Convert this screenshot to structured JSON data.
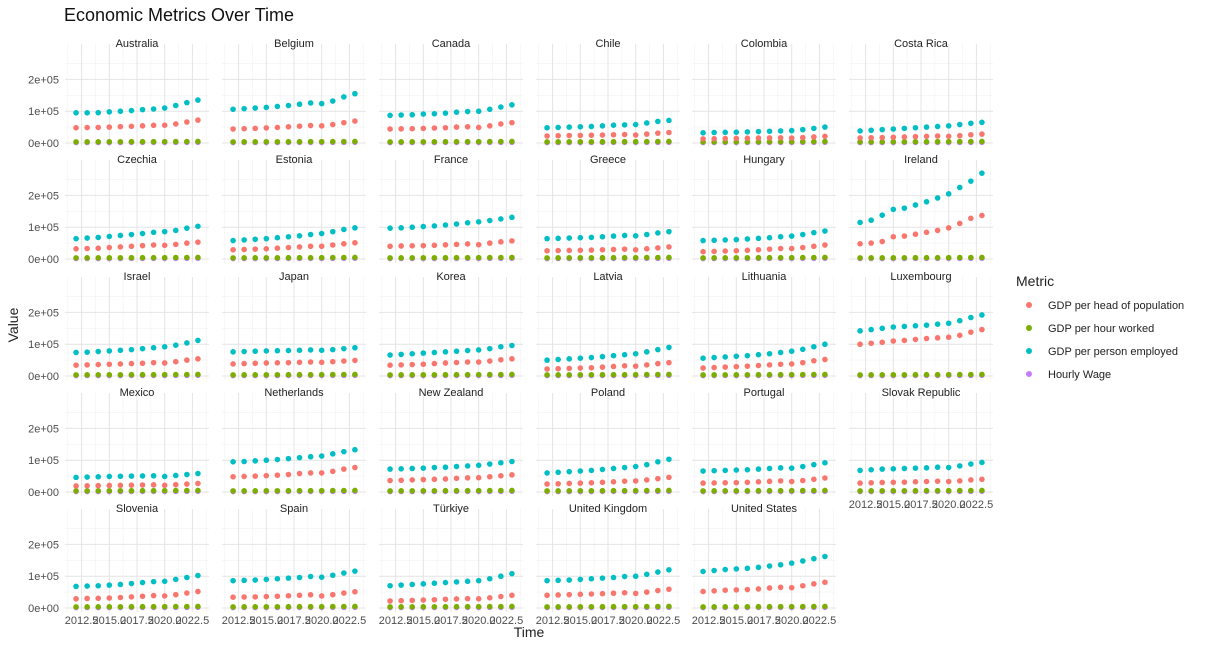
{
  "chart_data": {
    "type": "scatter",
    "title": "Economic Metrics Over Time",
    "xlabel": "Time",
    "ylabel": "Value",
    "facet_layout": {
      "columns": 6,
      "rows": 5,
      "shared_axes": true
    },
    "xlim": [
      2011,
      2024
    ],
    "ylim": [
      0,
      280000
    ],
    "x_ticks": [
      2012.5,
      2015.0,
      2017.5,
      2020.0,
      2022.5
    ],
    "x_tick_labels": [
      "2012.5",
      "2015.0",
      "2017.5",
      "2020.0",
      "2022.5"
    ],
    "y_ticks": [
      0,
      100000,
      200000
    ],
    "y_tick_labels": [
      "0e+00",
      "1e+05",
      "2e+05"
    ],
    "x": [
      2012,
      2013,
      2014,
      2015,
      2016,
      2017,
      2018,
      2019,
      2020,
      2021,
      2022,
      2023
    ],
    "grid": true,
    "legend": {
      "title": "Metric",
      "placement": "right",
      "entries": [
        {
          "name": "GDP per head of population",
          "color": "#F8766D"
        },
        {
          "name": "GDP per hour worked",
          "color": "#7CAE00"
        },
        {
          "name": "GDP per person employed",
          "color": "#00BFC4"
        },
        {
          "name": "Hourly Wage",
          "color": "#C77CFF"
        }
      ]
    },
    "facets": [
      {
        "name": "Australia",
        "head": [
          48000,
          48500,
          49000,
          50000,
          51500,
          52500,
          54000,
          55500,
          56000,
          60000,
          66000,
          72000
        ],
        "per_employed": [
          95000,
          95000,
          95500,
          98000,
          100000,
          102000,
          105000,
          107000,
          110000,
          118000,
          127000,
          135000
        ]
      },
      {
        "name": "Belgium",
        "head": [
          44000,
          45000,
          46000,
          47500,
          49000,
          51000,
          53000,
          55000,
          54000,
          58000,
          64000,
          69000
        ],
        "per_employed": [
          106000,
          108000,
          110000,
          112000,
          115000,
          118000,
          122000,
          126000,
          124000,
          132000,
          145000,
          155000
        ]
      },
      {
        "name": "Canada",
        "head": [
          44000,
          44500,
          45000,
          46000,
          47000,
          48000,
          50000,
          51000,
          49000,
          54000,
          60000,
          64000
        ],
        "per_employed": [
          87000,
          88000,
          89000,
          91000,
          92000,
          94000,
          97000,
          99000,
          100000,
          106000,
          113000,
          120000
        ]
      },
      {
        "name": "Chile",
        "head": [
          22000,
          23000,
          23500,
          24000,
          24500,
          25000,
          26000,
          26500,
          25000,
          28000,
          31000,
          33000
        ],
        "per_employed": [
          48000,
          49000,
          50000,
          51000,
          52000,
          54000,
          56000,
          57000,
          58000,
          63000,
          68000,
          71000
        ]
      },
      {
        "name": "Colombia",
        "head": [
          13000,
          13500,
          14000,
          14500,
          15000,
          15500,
          16000,
          16500,
          15500,
          17000,
          19000,
          21000
        ],
        "per_employed": [
          32000,
          33000,
          33500,
          34000,
          35000,
          36000,
          37000,
          38000,
          39000,
          42000,
          46000,
          50000
        ]
      },
      {
        "name": "Costa Rica",
        "head": [
          16000,
          16500,
          17000,
          18000,
          19000,
          20000,
          21000,
          22000,
          21000,
          23000,
          26000,
          28000
        ],
        "per_employed": [
          38000,
          40000,
          42000,
          44000,
          46000,
          48000,
          50000,
          52000,
          54000,
          58000,
          62000,
          65000
        ]
      },
      {
        "name": "Czechia",
        "head": [
          32000,
          33000,
          34000,
          36000,
          38000,
          40000,
          42000,
          44000,
          43000,
          46000,
          50000,
          53000
        ],
        "per_employed": [
          64000,
          66000,
          68000,
          71000,
          74000,
          77000,
          80000,
          84000,
          86000,
          90000,
          97000,
          103000
        ]
      },
      {
        "name": "Estonia",
        "head": [
          29000,
          30000,
          31000,
          32000,
          34000,
          36000,
          38000,
          40000,
          40000,
          44000,
          48000,
          51000
        ],
        "per_employed": [
          58000,
          60000,
          62000,
          64000,
          67000,
          70000,
          73000,
          77000,
          80000,
          86000,
          93000,
          98000
        ]
      },
      {
        "name": "France",
        "head": [
          40000,
          41000,
          41500,
          42000,
          43000,
          44500,
          46000,
          47500,
          45000,
          50000,
          54000,
          57000
        ],
        "per_employed": [
          97000,
          98000,
          100000,
          102000,
          104000,
          107000,
          110000,
          114000,
          117000,
          121000,
          126000,
          131000
        ]
      },
      {
        "name": "Greece",
        "head": [
          26000,
          26500,
          27000,
          27500,
          28000,
          29000,
          30000,
          31000,
          29000,
          32000,
          35000,
          38000
        ],
        "per_employed": [
          64000,
          65000,
          66000,
          67000,
          68000,
          70000,
          72000,
          74000,
          73000,
          77000,
          82000,
          86000
        ]
      },
      {
        "name": "Hungary",
        "head": [
          23000,
          24000,
          25000,
          26000,
          27500,
          29000,
          31000,
          33000,
          33000,
          36000,
          40000,
          44000
        ],
        "per_employed": [
          58000,
          59000,
          60000,
          61000,
          63000,
          65000,
          67000,
          70000,
          72000,
          77000,
          83000,
          88000
        ]
      },
      {
        "name": "Ireland",
        "head": [
          48000,
          50000,
          55000,
          70000,
          72000,
          78000,
          84000,
          90000,
          98000,
          112000,
          128000,
          137000
        ],
        "per_employed": [
          115000,
          122000,
          138000,
          156000,
          160000,
          170000,
          180000,
          192000,
          205000,
          225000,
          245000,
          270000
        ]
      },
      {
        "name": "Israel",
        "head": [
          34000,
          35000,
          36000,
          37000,
          38000,
          39000,
          40000,
          42000,
          41000,
          45000,
          50000,
          54000
        ],
        "per_employed": [
          74000,
          75000,
          77000,
          79000,
          81000,
          83000,
          86000,
          89000,
          92000,
          97000,
          104000,
          112000
        ]
      },
      {
        "name": "Japan",
        "head": [
          38000,
          39000,
          40000,
          41000,
          41500,
          42000,
          43000,
          44000,
          43000,
          45000,
          47000,
          49000
        ],
        "per_employed": [
          76000,
          77000,
          78000,
          79000,
          79500,
          80000,
          81000,
          82000,
          81000,
          83000,
          86000,
          89000
        ]
      },
      {
        "name": "Korea",
        "head": [
          34000,
          35000,
          36000,
          37000,
          39000,
          41000,
          42500,
          44000,
          44000,
          47000,
          51000,
          54000
        ],
        "per_employed": [
          66000,
          68000,
          70000,
          72000,
          74000,
          76000,
          78000,
          80000,
          82000,
          86000,
          92000,
          96000
        ]
      },
      {
        "name": "Latvia",
        "head": [
          22000,
          23000,
          24000,
          25000,
          26000,
          28000,
          30000,
          32000,
          31000,
          35000,
          39000,
          42000
        ],
        "per_employed": [
          50000,
          52000,
          54000,
          56000,
          58000,
          61000,
          64000,
          67000,
          70000,
          76000,
          83000,
          90000
        ]
      },
      {
        "name": "Lithuania",
        "head": [
          25000,
          26500,
          28000,
          29500,
          31000,
          33000,
          35000,
          37000,
          38000,
          42000,
          48000,
          52000
        ],
        "per_employed": [
          56000,
          58000,
          60000,
          62000,
          64000,
          67000,
          70000,
          74000,
          78000,
          84000,
          92000,
          100000
        ]
      },
      {
        "name": "Luxembourg",
        "head": [
          100000,
          103000,
          106000,
          110000,
          112000,
          115000,
          118000,
          120000,
          122000,
          128000,
          138000,
          146000
        ],
        "per_employed": [
          142000,
          146000,
          150000,
          154000,
          156000,
          158000,
          160000,
          163000,
          166000,
          174000,
          184000,
          192000
        ]
      },
      {
        "name": "Mexico",
        "head": [
          19000,
          19500,
          20000,
          20500,
          21000,
          21500,
          22000,
          22500,
          21000,
          23000,
          25000,
          27000
        ],
        "per_employed": [
          46000,
          47000,
          48000,
          49000,
          49500,
          50000,
          50500,
          51000,
          49000,
          52000,
          55000,
          58000
        ]
      },
      {
        "name": "Netherlands",
        "head": [
          48000,
          49000,
          50000,
          51500,
          53000,
          55000,
          58000,
          60000,
          60000,
          65000,
          72000,
          77000
        ],
        "per_employed": [
          95000,
          96000,
          98000,
          100000,
          102000,
          105000,
          108000,
          111000,
          113000,
          120000,
          127000,
          133000
        ]
      },
      {
        "name": "New Zealand",
        "head": [
          36000,
          37000,
          38000,
          39000,
          40000,
          41000,
          43000,
          44500,
          45000,
          48000,
          51000,
          54000
        ],
        "per_employed": [
          72000,
          73000,
          74000,
          75000,
          77000,
          78000,
          80000,
          82000,
          84000,
          88000,
          92000,
          96000
        ]
      },
      {
        "name": "Poland",
        "head": [
          25000,
          26000,
          27000,
          28000,
          29000,
          30500,
          32000,
          34000,
          35000,
          38000,
          42000,
          46000
        ],
        "per_employed": [
          60000,
          62000,
          64000,
          66000,
          68000,
          71000,
          74000,
          77000,
          80000,
          86000,
          95000,
          103000
        ]
      },
      {
        "name": "Portugal",
        "head": [
          28000,
          28500,
          29000,
          29500,
          30500,
          32000,
          33500,
          35000,
          33000,
          36000,
          40000,
          44000
        ],
        "per_employed": [
          66000,
          67000,
          68000,
          69000,
          70000,
          72000,
          74000,
          76000,
          75000,
          80000,
          86000,
          92000
        ]
      },
      {
        "name": "Slovak Republic",
        "head": [
          28000,
          29000,
          30000,
          30500,
          31000,
          32000,
          33000,
          34000,
          33000,
          35000,
          38000,
          40000
        ],
        "per_employed": [
          68000,
          70000,
          72000,
          73000,
          74000,
          75000,
          76000,
          78000,
          77000,
          82000,
          88000,
          93000
        ]
      },
      {
        "name": "Slovenia",
        "head": [
          29000,
          30000,
          30500,
          31500,
          33000,
          35000,
          37000,
          39000,
          38000,
          42000,
          47000,
          52000
        ],
        "per_employed": [
          68000,
          69000,
          70000,
          72000,
          74000,
          77000,
          80000,
          83000,
          84000,
          90000,
          96000,
          102000
        ]
      },
      {
        "name": "Spain",
        "head": [
          34000,
          34500,
          35000,
          36000,
          37000,
          38500,
          40000,
          41500,
          38000,
          42000,
          47000,
          51000
        ],
        "per_employed": [
          86000,
          87000,
          88000,
          90000,
          92000,
          94000,
          96000,
          99000,
          97000,
          103000,
          110000,
          116000
        ]
      },
      {
        "name": "Türkiye",
        "head": [
          22000,
          23000,
          24000,
          25000,
          26000,
          27500,
          28500,
          29500,
          29000,
          32000,
          36000,
          40000
        ],
        "per_employed": [
          70000,
          72000,
          74000,
          76000,
          78000,
          80000,
          82000,
          84000,
          86000,
          92000,
          100000,
          108000
        ]
      },
      {
        "name": "United Kingdom",
        "head": [
          40000,
          41000,
          42000,
          43000,
          44000,
          45000,
          46500,
          48000,
          46000,
          50000,
          55000,
          59000
        ],
        "per_employed": [
          86000,
          87000,
          88000,
          90000,
          92000,
          94000,
          96000,
          99000,
          100000,
          106000,
          113000,
          120000
        ]
      },
      {
        "name": "United States",
        "head": [
          52000,
          54000,
          56000,
          57000,
          58000,
          60000,
          63000,
          65000,
          64000,
          70000,
          76000,
          81000
        ],
        "per_employed": [
          115000,
          118000,
          121000,
          123000,
          125000,
          128000,
          132000,
          136000,
          141000,
          148000,
          155000,
          162000
        ]
      }
    ],
    "per_hour_default": [
      3500,
      3600,
      3700,
      3800,
      3900,
      4000,
      4100,
      4200,
      4300,
      4500,
      4700,
      4900
    ],
    "hourly_wage_default": [
      1500,
      1550,
      1600,
      1650,
      1700,
      1750,
      1800,
      1850,
      1900,
      1950,
      2000,
      2100
    ]
  }
}
